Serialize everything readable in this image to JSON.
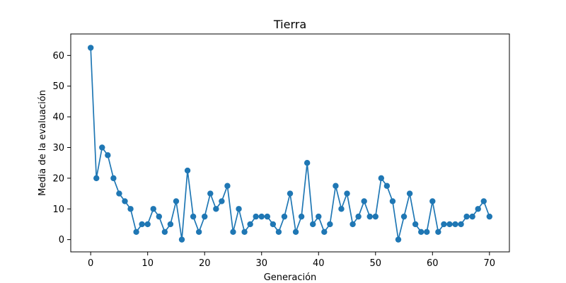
{
  "chart_data": {
    "type": "line",
    "title": "Tierra",
    "xlabel": "Generación",
    "ylabel": "Media de la evaluación",
    "xlim": [
      -3.5,
      73.5
    ],
    "ylim": [
      -4,
      67
    ],
    "xticks": [
      0,
      10,
      20,
      30,
      40,
      50,
      60,
      70
    ],
    "yticks": [
      0,
      10,
      20,
      30,
      40,
      50,
      60
    ],
    "grid": false,
    "legend": "none",
    "color": "#1f77b4",
    "x": [
      0,
      1,
      2,
      3,
      4,
      5,
      6,
      7,
      8,
      9,
      10,
      11,
      12,
      13,
      14,
      15,
      16,
      17,
      18,
      19,
      20,
      21,
      22,
      23,
      24,
      25,
      26,
      27,
      28,
      29,
      30,
      31,
      32,
      33,
      34,
      35,
      36,
      37,
      38,
      39,
      40,
      41,
      42,
      43,
      44,
      45,
      46,
      47,
      48,
      49,
      50,
      51,
      52,
      53,
      54,
      55,
      56,
      57,
      58,
      59,
      60,
      61,
      62,
      63,
      64,
      65,
      66,
      67,
      68,
      69,
      70
    ],
    "y": [
      62.5,
      20,
      30,
      27.5,
      20,
      15,
      12.5,
      10,
      2.5,
      5,
      5,
      10,
      7.5,
      2.5,
      5,
      12.5,
      0,
      22.5,
      7.5,
      2.5,
      7.5,
      15,
      10,
      12.5,
      17.5,
      2.5,
      10,
      2.5,
      5,
      7.5,
      7.5,
      7.5,
      5,
      2.5,
      7.5,
      15,
      2.5,
      7.5,
      25,
      5,
      7.5,
      2.5,
      5,
      17.5,
      10,
      15,
      5,
      7.5,
      12.5,
      7.5,
      7.5,
      20,
      17.5,
      12.5,
      0,
      7.5,
      15,
      5,
      2.5,
      2.5,
      12.5,
      2.5,
      5,
      5,
      5,
      5,
      7.5,
      7.5,
      10,
      12.5,
      7.5
    ]
  }
}
